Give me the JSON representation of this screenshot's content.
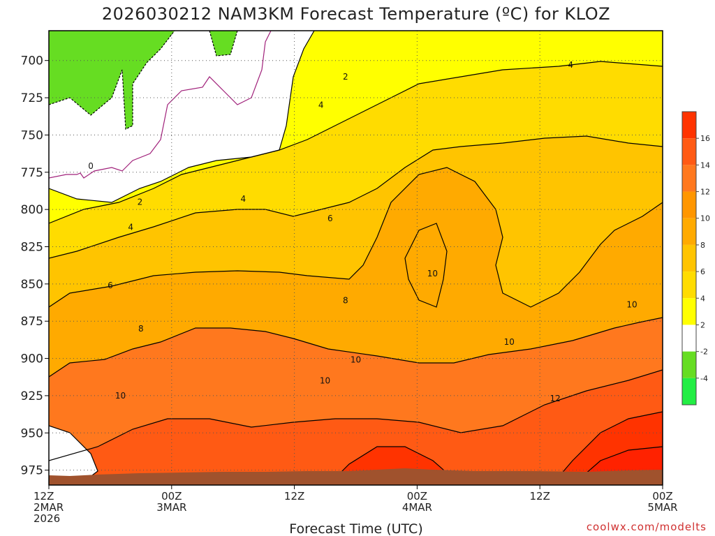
{
  "title": "2026030212 NAM3KM Forecast Temperature (ºC) for KLOZ",
  "credit": "coolwx.com/modelts",
  "colors": {
    "bg": "#ffffff",
    "ground": "#a0522d",
    "zero_contour": "#a0207a",
    "contour": "#000000",
    "grid": "#555555"
  },
  "chart_data": {
    "type": "heatmap",
    "title": "2026030212 NAM3KM Forecast Temperature (ºC) for KLOZ",
    "xlabel": "Forecast Time (UTC)",
    "ylabel": "",
    "x_range_hours": [
      0,
      60
    ],
    "y_range_mb": [
      985,
      680
    ],
    "y_ticks": [
      700,
      725,
      750,
      775,
      800,
      825,
      850,
      875,
      900,
      925,
      950,
      975
    ],
    "x_ticks": [
      {
        "hour": 0,
        "lines": [
          "12Z",
          "2MAR",
          "2026"
        ]
      },
      {
        "hour": 12,
        "lines": [
          "00Z",
          "3MAR"
        ]
      },
      {
        "hour": 24,
        "lines": [
          "12Z"
        ]
      },
      {
        "hour": 36,
        "lines": [
          "00Z",
          "4MAR"
        ]
      },
      {
        "hour": 48,
        "lines": [
          "12Z"
        ]
      },
      {
        "hour": 60,
        "lines": [
          "00Z",
          "5MAR"
        ]
      }
    ],
    "grid": true,
    "colorbar": {
      "labels": [
        "16",
        "14",
        "12",
        "10",
        "8",
        "6",
        "4",
        "2",
        "-2",
        "-4"
      ],
      "colors": [
        "#ff3300",
        "#ff5a14",
        "#ff781e",
        "#ff9600",
        "#ffaa00",
        "#ffc400",
        "#ffdc00",
        "#ffff00",
        "#ffffff",
        "#66dd22",
        "#22ee44"
      ]
    },
    "contour_labels": [
      {
        "text": "0",
        "hour": 4.1,
        "mb": 771
      },
      {
        "text": "2",
        "hour": 8.9,
        "mb": 795
      },
      {
        "text": "2",
        "hour": 29.0,
        "mb": 711
      },
      {
        "text": "4",
        "hour": 8.0,
        "mb": 812
      },
      {
        "text": "4",
        "hour": 19.0,
        "mb": 793
      },
      {
        "text": "4",
        "hour": 26.6,
        "mb": 730
      },
      {
        "text": "4",
        "hour": 51.0,
        "mb": 703
      },
      {
        "text": "6",
        "hour": 6.0,
        "mb": 851
      },
      {
        "text": "6",
        "hour": 27.5,
        "mb": 806
      },
      {
        "text": "8",
        "hour": 9.0,
        "mb": 880
      },
      {
        "text": "8",
        "hour": 29.0,
        "mb": 861
      },
      {
        "text": "10",
        "hour": 7.0,
        "mb": 925
      },
      {
        "text": "10",
        "hour": 27.0,
        "mb": 915
      },
      {
        "text": "10",
        "hour": 30.0,
        "mb": 901
      },
      {
        "text": "10",
        "hour": 37.5,
        "mb": 843
      },
      {
        "text": "10",
        "hour": 45.0,
        "mb": 889
      },
      {
        "text": "10",
        "hour": 57.0,
        "mb": 864
      },
      {
        "text": "12",
        "hour": 49.5,
        "mb": 927
      }
    ]
  }
}
